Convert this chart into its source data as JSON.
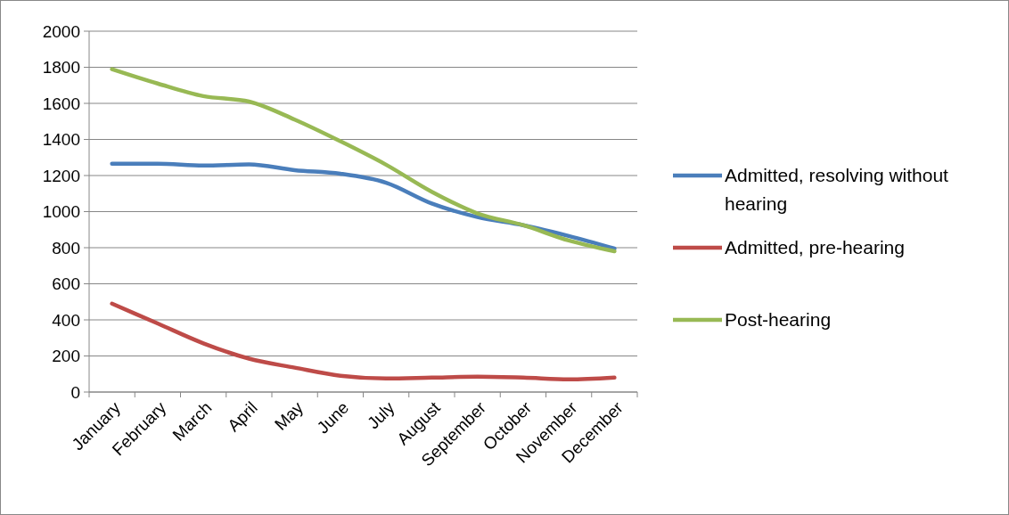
{
  "chart_data": {
    "type": "line",
    "categories": [
      "January",
      "February",
      "March",
      "April",
      "May",
      "June",
      "July",
      "August",
      "September",
      "October",
      "November",
      "December"
    ],
    "series": [
      {
        "name": "Admitted, resolving without hearing",
        "color": "#4a7ebb",
        "values": [
          1265,
          1265,
          1255,
          1262,
          1230,
          1210,
          1160,
          1045,
          970,
          925,
          865,
          795
        ]
      },
      {
        "name": "Admitted, pre-hearing",
        "color": "#be4b48",
        "values": [
          490,
          380,
          270,
          185,
          135,
          90,
          75,
          80,
          85,
          80,
          70,
          80
        ]
      },
      {
        "name": "Post-hearing",
        "color": "#98b954",
        "values": [
          1790,
          1710,
          1640,
          1610,
          1510,
          1390,
          1260,
          1110,
          990,
          925,
          840,
          780
        ]
      }
    ],
    "ylim": [
      0,
      2000
    ],
    "yticks": [
      0,
      200,
      400,
      600,
      800,
      1000,
      1200,
      1400,
      1600,
      1800,
      2000
    ],
    "grid": "y",
    "legend": "right",
    "marker": "none",
    "line_style": "solid"
  }
}
